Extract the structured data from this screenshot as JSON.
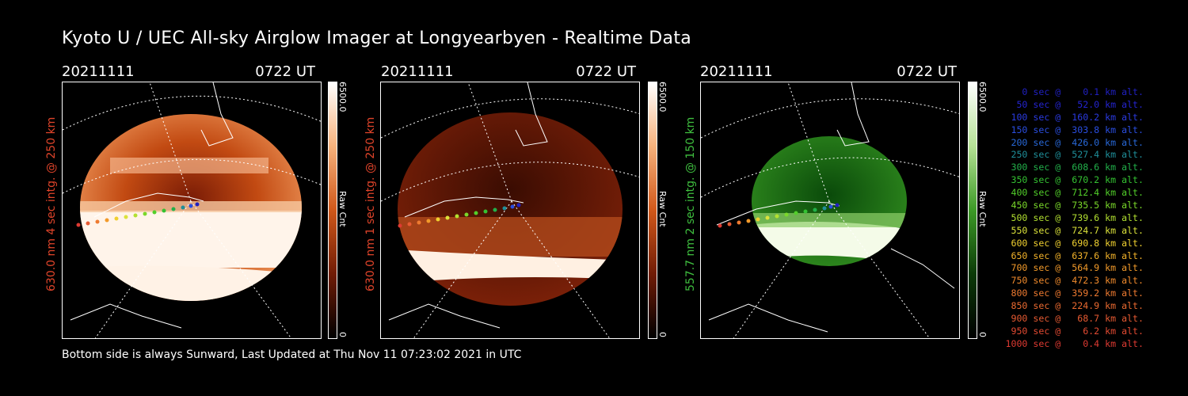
{
  "title": "Kyoto U / UEC All-sky Airglow Imager at Longyearbyen - Realtime Data",
  "footer": "Bottom side is always Sunward, Last Updated at Thu Nov 11 07:23:02 2021 in UTC",
  "panels": [
    {
      "date": "20211111",
      "time": "0722 UT",
      "ylabel": "630.0 nm 4 sec intg. @ 250 km",
      "ylabel_color": "#e0442a",
      "colorbar_max": "6500.0",
      "colorbar_min": "0",
      "colorbar_label": "Raw Cnt",
      "color_scheme": "red"
    },
    {
      "date": "20211111",
      "time": "0722 UT",
      "ylabel": "630.0 nm 1 sec intg. @ 250 km",
      "ylabel_color": "#e0442a",
      "colorbar_max": "6500.0",
      "colorbar_min": "0",
      "colorbar_label": "Raw Cnt",
      "color_scheme": "red"
    },
    {
      "date": "20211111",
      "time": "0722 UT",
      "ylabel": "557.7 nm 2 sec intg. @ 150 km",
      "ylabel_color": "#3fbf3f",
      "colorbar_max": "6500.0",
      "colorbar_min": "0",
      "colorbar_label": "Raw Cnt",
      "color_scheme": "green"
    }
  ],
  "legend": [
    {
      "text": "   0 sec @    0.1 km alt.",
      "color": "#2020c0"
    },
    {
      "text": "  50 sec @   52.0 km alt.",
      "color": "#2424d0"
    },
    {
      "text": " 100 sec @  160.2 km alt.",
      "color": "#2a3ae0"
    },
    {
      "text": " 150 sec @  303.8 km alt.",
      "color": "#2a4ee0"
    },
    {
      "text": " 200 sec @  426.0 km alt.",
      "color": "#2868d8"
    },
    {
      "text": " 250 sec @  527.4 km alt.",
      "color": "#1f8f9a"
    },
    {
      "text": " 300 sec @  608.6 km alt.",
      "color": "#22b04a"
    },
    {
      "text": " 350 sec @  670.2 km alt.",
      "color": "#34c232"
    },
    {
      "text": " 400 sec @  712.4 km alt.",
      "color": "#52cf2a"
    },
    {
      "text": " 450 sec @  735.5 km alt.",
      "color": "#7ad82a"
    },
    {
      "text": " 500 sec @  739.6 km alt.",
      "color": "#b2e030"
    },
    {
      "text": " 550 sec @  724.7 km alt.",
      "color": "#dbe23a"
    },
    {
      "text": " 600 sec @  690.8 km alt.",
      "color": "#f0d030"
    },
    {
      "text": " 650 sec @  637.6 km alt.",
      "color": "#f2b22a"
    },
    {
      "text": " 700 sec @  564.9 km alt.",
      "color": "#f29a2a"
    },
    {
      "text": " 750 sec @  472.3 km alt.",
      "color": "#f08a2c"
    },
    {
      "text": " 800 sec @  359.2 km alt.",
      "color": "#ee7a30"
    },
    {
      "text": " 850 sec @  224.9 km alt.",
      "color": "#ea6a30"
    },
    {
      "text": " 900 sec @   68.7 km alt.",
      "color": "#e65a32"
    },
    {
      "text": " 950 sec @    6.2 km alt.",
      "color": "#e24a32"
    },
    {
      "text": "1000 sec @    0.4 km alt.",
      "color": "#de3a32"
    }
  ]
}
